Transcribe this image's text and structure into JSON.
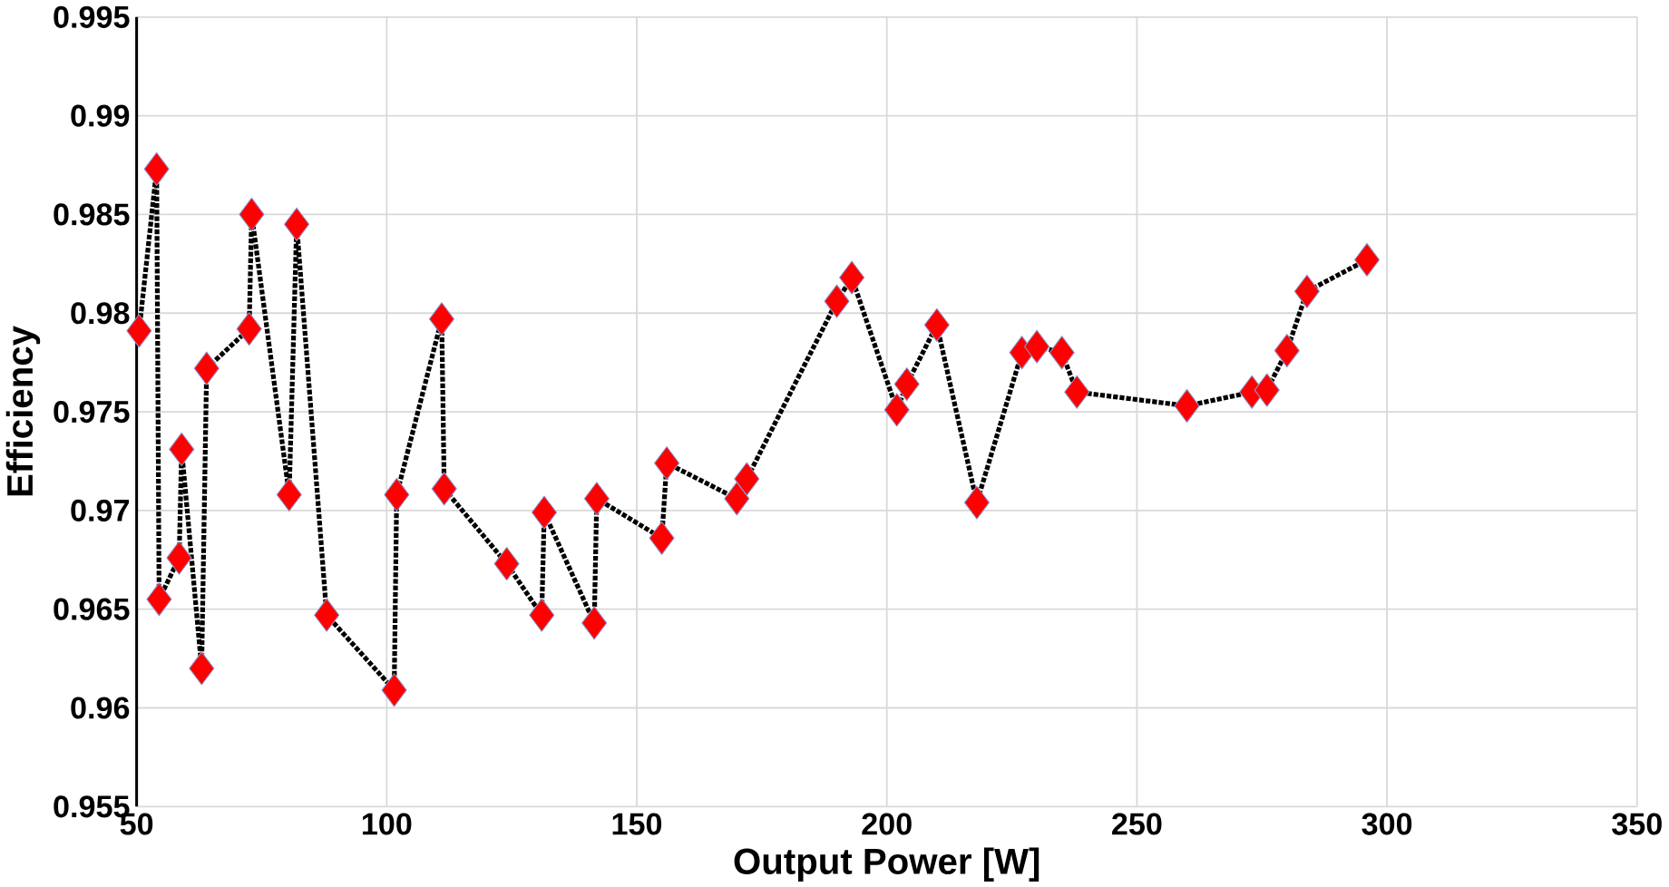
{
  "chart_data": {
    "type": "line",
    "xlabel": "Output Power [W]",
    "ylabel": "Efficiency",
    "x": [
      50.5,
      54,
      54.5,
      58.5,
      59,
      63,
      64,
      72.5,
      73,
      80.5,
      82,
      88,
      101.5,
      102,
      111,
      111.5,
      124,
      131,
      131.5,
      141.5,
      142,
      155,
      156,
      170,
      172,
      190,
      193,
      202,
      204,
      210,
      218,
      227,
      230,
      235,
      238,
      260,
      273,
      276,
      280,
      284,
      296
    ],
    "series": [
      {
        "color": "#ff0000",
        "values": [
          0.9791,
          0.9873,
          0.9655,
          0.9676,
          0.9731,
          0.962,
          0.9772,
          0.9792,
          0.985,
          0.9708,
          0.9845,
          0.9647,
          0.9609,
          0.9708,
          0.9797,
          0.9711,
          0.9673,
          0.9647,
          0.9699,
          0.9643,
          0.9706,
          0.9686,
          0.9724,
          0.9706,
          0.9716,
          0.9806,
          0.9818,
          0.9751,
          0.9764,
          0.9794,
          0.9704,
          0.978,
          0.9783,
          0.978,
          0.976,
          0.9753,
          0.976,
          0.9761,
          0.9781,
          0.9811,
          0.9827
        ]
      }
    ],
    "xlim": [
      50,
      350
    ],
    "xticks": [
      50,
      100,
      150,
      200,
      250,
      300,
      350
    ],
    "ylim": [
      0.955,
      0.995
    ],
    "yticks": [
      0.955,
      0.96,
      0.965,
      0.97,
      0.975,
      0.98,
      0.985,
      0.99,
      0.995
    ],
    "grid": true,
    "marker": "diamond",
    "line_style": "dotted"
  }
}
